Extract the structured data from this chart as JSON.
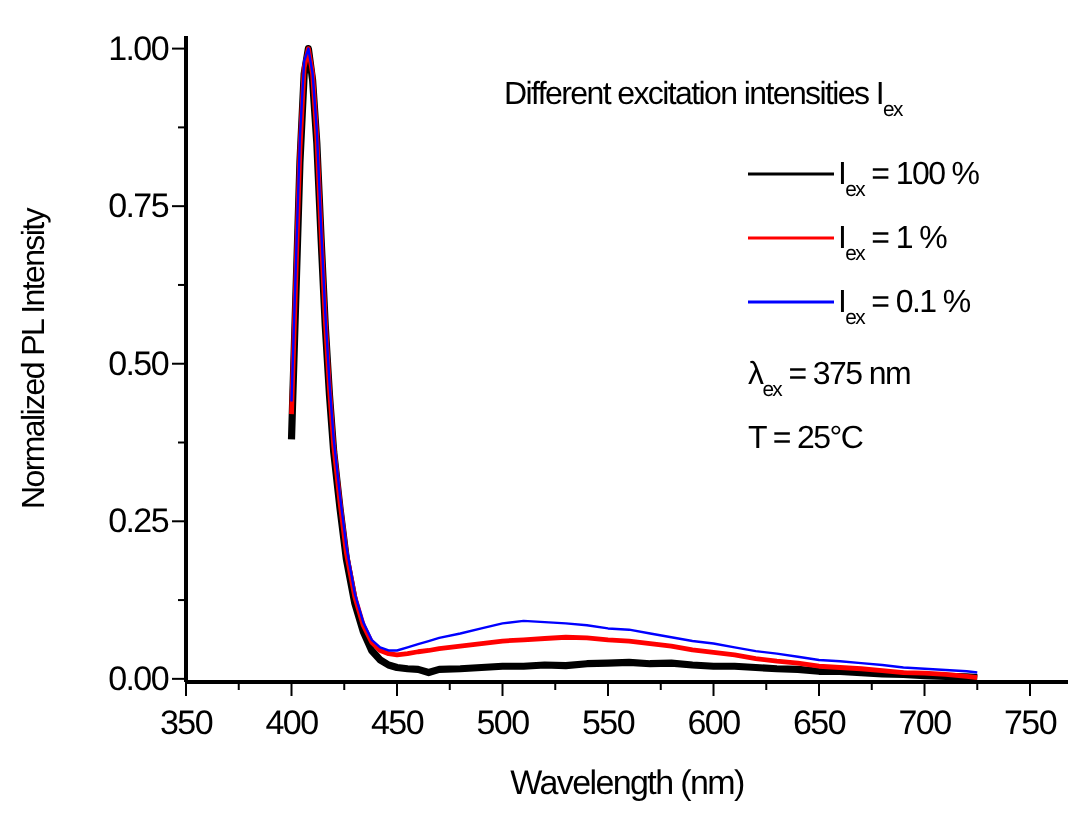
{
  "chart_data": {
    "type": "line",
    "xlabel": "Wavelength (nm)",
    "ylabel": "Normalized PL Intensity",
    "legend_title": "Different excitation intensities I$_{ex}$",
    "annotations": [
      "λ$_{ex}$ = 375 nm",
      "T = 25°C"
    ],
    "x": [
      400,
      402,
      404,
      406,
      408,
      410,
      412,
      414,
      416,
      418,
      420,
      423,
      426,
      430,
      434,
      438,
      442,
      446,
      450,
      455,
      460,
      465,
      470,
      480,
      490,
      500,
      510,
      520,
      530,
      540,
      550,
      560,
      570,
      580,
      590,
      600,
      610,
      620,
      630,
      640,
      650,
      660,
      670,
      680,
      690,
      700,
      710,
      720,
      725
    ],
    "series": [
      {
        "name": "I$_{ex}$ = 100 %",
        "color": "#000000",
        "values": [
          0.38,
          0.6,
          0.82,
          0.96,
          1.0,
          0.95,
          0.85,
          0.7,
          0.56,
          0.45,
          0.36,
          0.27,
          0.19,
          0.12,
          0.075,
          0.045,
          0.03,
          0.022,
          0.018,
          0.016,
          0.015,
          0.01,
          0.015,
          0.016,
          0.018,
          0.02,
          0.02,
          0.022,
          0.021,
          0.024,
          0.025,
          0.026,
          0.024,
          0.025,
          0.022,
          0.02,
          0.02,
          0.018,
          0.016,
          0.015,
          0.012,
          0.012,
          0.01,
          0.008,
          0.007,
          0.005,
          0.004,
          0.003,
          0.002
        ]
      },
      {
        "name": "I$_{ex}$ = 1 %",
        "color": "#ff0000",
        "values": [
          0.42,
          0.63,
          0.84,
          0.97,
          1.0,
          0.96,
          0.86,
          0.71,
          0.57,
          0.46,
          0.37,
          0.28,
          0.2,
          0.13,
          0.085,
          0.058,
          0.045,
          0.04,
          0.038,
          0.04,
          0.043,
          0.045,
          0.048,
          0.052,
          0.056,
          0.06,
          0.062,
          0.064,
          0.066,
          0.065,
          0.062,
          0.06,
          0.056,
          0.052,
          0.046,
          0.042,
          0.038,
          0.032,
          0.028,
          0.025,
          0.02,
          0.018,
          0.016,
          0.013,
          0.01,
          0.009,
          0.007,
          0.004,
          0.002
        ]
      },
      {
        "name": "I$_{ex}$ = 0.1 %",
        "color": "#0000ff",
        "values": [
          0.44,
          0.65,
          0.86,
          0.98,
          1.0,
          0.96,
          0.87,
          0.72,
          0.58,
          0.47,
          0.38,
          0.29,
          0.21,
          0.135,
          0.09,
          0.062,
          0.05,
          0.045,
          0.045,
          0.05,
          0.055,
          0.06,
          0.065,
          0.072,
          0.08,
          0.088,
          0.092,
          0.09,
          0.088,
          0.085,
          0.08,
          0.078,
          0.072,
          0.066,
          0.06,
          0.056,
          0.05,
          0.044,
          0.04,
          0.035,
          0.03,
          0.028,
          0.025,
          0.022,
          0.018,
          0.016,
          0.014,
          0.012,
          0.01
        ]
      }
    ],
    "xlim": [
      350,
      768
    ],
    "ylim": [
      -0.005,
      1.02
    ],
    "xticks": [
      350,
      {
        "value": 375,
        "label": null
      },
      400,
      {
        "value": 425,
        "label": null
      },
      450,
      {
        "value": 475,
        "label": null
      },
      500,
      {
        "value": 525,
        "label": null
      },
      550,
      {
        "value": 575,
        "label": null
      },
      600,
      {
        "value": 625,
        "label": null
      },
      650,
      {
        "value": 675,
        "label": null
      },
      700,
      {
        "value": 725,
        "label": null
      },
      750
    ],
    "yticks": [
      {
        "value": 0,
        "label": "0.00"
      },
      {
        "value": 0.125,
        "label": null
      },
      {
        "value": 0.25,
        "label": "0.25"
      },
      {
        "value": 0.375,
        "label": null
      },
      {
        "value": 0.5,
        "label": "0.50"
      },
      {
        "value": 0.625,
        "label": null
      },
      {
        "value": 0.75,
        "label": "0.75"
      },
      {
        "value": 0.875,
        "label": null
      },
      {
        "value": 1,
        "label": "1.00"
      }
    ],
    "legend": "top right",
    "grid": false,
    "line_style": "solid",
    "marker": "none"
  }
}
